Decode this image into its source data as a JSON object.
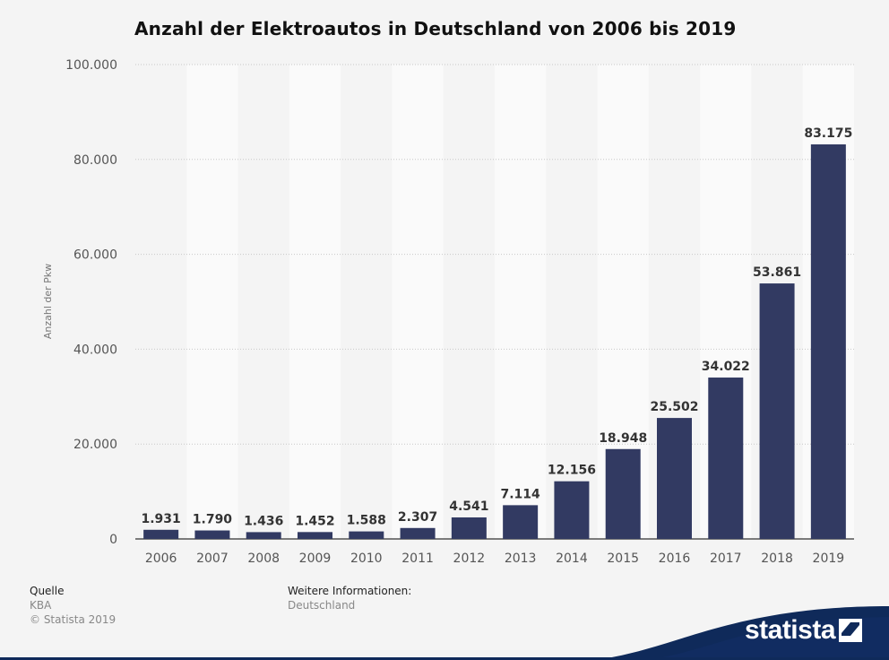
{
  "title": "Anzahl der Elektroautos in Deutschland von 2006 bis 2019",
  "footer": {
    "source_label": "Quelle",
    "source_value": "KBA",
    "copyright": "© Statista 2019",
    "info_label": "Weitere Informationen:",
    "info_value": "Deutschland"
  },
  "brand": {
    "name": "statista",
    "icon": "statista-logo-icon"
  },
  "colors": {
    "bar": "#323a62",
    "band": "#fafafa",
    "background": "#f4f4f4",
    "brand_dark": "#0f2a5a"
  },
  "chart_data": {
    "type": "bar",
    "title": "Anzahl der Elektroautos in Deutschland von 2006 bis 2019",
    "xlabel": "",
    "ylabel": "Anzahl der Pkw",
    "categories": [
      "2006",
      "2007",
      "2008",
      "2009",
      "2010",
      "2011",
      "2012",
      "2013",
      "2014",
      "2015",
      "2016",
      "2017",
      "2018",
      "2019"
    ],
    "values": [
      1931,
      1790,
      1436,
      1452,
      1588,
      2307,
      4541,
      7114,
      12156,
      18948,
      25502,
      34022,
      53861,
      83175
    ],
    "value_labels": [
      "1.931",
      "1.790",
      "1.436",
      "1.452",
      "1.588",
      "2.307",
      "4.541",
      "7.114",
      "12.156",
      "18.948",
      "25.502",
      "34.022",
      "53.861",
      "83.175"
    ],
    "yticks": [
      0,
      20000,
      40000,
      60000,
      80000,
      100000
    ],
    "ytick_labels": [
      "0",
      "20.000",
      "40.000",
      "60.000",
      "80.000",
      "100.000"
    ],
    "ylim": [
      0,
      100000
    ],
    "grid": true,
    "legend": "none"
  }
}
